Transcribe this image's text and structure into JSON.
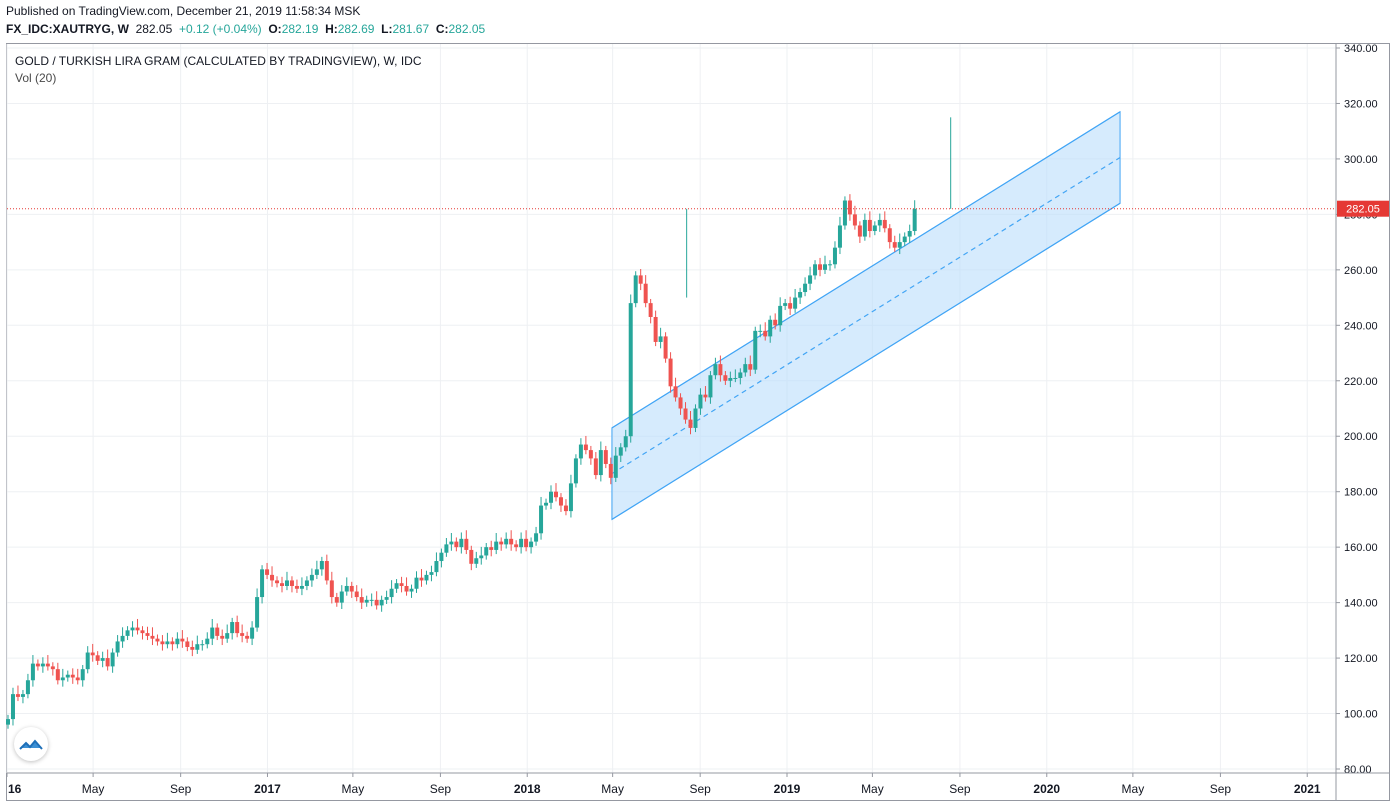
{
  "header": {
    "published": "Published on TradingView.com, December 21, 2019 11:58:34 MSK",
    "symbol": "FX_IDC:XAUTRYG, W",
    "last": "282.05",
    "change": "+0.12 (+0.04%)",
    "o_label": "O:",
    "o_value": "282.19",
    "h_label": "H:",
    "h_value": "282.69",
    "l_label": "L:",
    "l_value": "281.67",
    "c_label": "C:",
    "c_value": "282.05"
  },
  "legend": {
    "title": "GOLD / TURKISH LIRA GRAM (CALCULATED BY TRADINGVIEW), W, IDC",
    "indicator": "Vol (20)"
  },
  "colors": {
    "up": "#26a69a",
    "down": "#ef5350",
    "channel_line": "#42a5f5",
    "channel_fill": "#bbdefb",
    "price_line": "#e53935",
    "grid": "#eef0f3",
    "axis_text": "#131722"
  },
  "chart_data": {
    "type": "candlestick",
    "interval": "weekly",
    "ylim": [
      80,
      340
    ],
    "y_ticks": [
      "80.00",
      "100.00",
      "120.00",
      "140.00",
      "160.00",
      "180.00",
      "200.00",
      "220.00",
      "240.00",
      "260.00",
      "280.00",
      "300.00",
      "320.00",
      "340.00"
    ],
    "x_ticks": [
      "16",
      "May",
      "Sep",
      "2017",
      "May",
      "Sep",
      "2018",
      "May",
      "Sep",
      "2019",
      "May",
      "Sep",
      "2020",
      "May",
      "Sep",
      "2021"
    ],
    "x_range": [
      "2016-01",
      "2021-05"
    ],
    "last_price_label": "282.05",
    "last_price": 282.05,
    "closes": [
      98,
      107,
      106,
      107,
      112,
      118,
      117,
      118,
      117,
      116,
      112,
      113,
      114,
      113,
      112,
      116,
      122,
      121,
      119,
      120,
      117,
      122,
      126,
      128,
      130,
      131,
      130,
      129,
      128,
      127,
      126,
      125,
      126,
      125,
      127,
      126,
      124,
      123,
      125,
      125,
      127,
      131,
      128,
      127,
      129,
      133,
      129,
      128,
      127,
      131,
      142,
      152,
      150,
      148,
      147,
      146,
      148,
      146,
      145,
      146,
      148,
      150,
      152,
      155,
      148,
      142,
      140,
      144,
      146,
      144,
      142,
      140,
      141,
      141,
      139,
      141,
      142,
      145,
      147,
      146,
      144,
      145,
      149,
      148,
      150,
      151,
      155,
      158,
      161,
      162,
      160,
      163,
      159,
      154,
      156,
      157,
      160,
      159,
      162,
      161,
      163,
      161,
      160,
      163,
      160,
      162,
      165,
      175,
      176,
      180,
      178,
      175,
      173,
      183,
      192,
      197,
      195,
      192,
      186,
      195,
      190,
      185,
      193,
      196,
      200,
      248,
      258,
      255,
      248,
      243,
      234,
      236,
      228,
      218,
      214,
      210,
      206,
      203,
      210,
      215,
      214,
      222,
      226,
      222,
      220,
      221,
      221,
      223,
      226,
      224,
      238,
      238,
      236,
      242,
      240,
      247,
      248,
      246,
      250,
      252,
      255,
      258,
      262,
      260,
      262,
      262,
      268,
      276,
      285,
      280,
      276,
      272,
      278,
      274,
      276,
      278,
      275,
      270,
      268,
      270,
      272,
      274,
      282
    ],
    "channel": {
      "start": {
        "date": "2018-04-30",
        "price": 186.5
      },
      "end": {
        "date": "2020-04-13",
        "price": 300.5
      },
      "half_width": 16.5,
      "center_dashed": true
    }
  }
}
